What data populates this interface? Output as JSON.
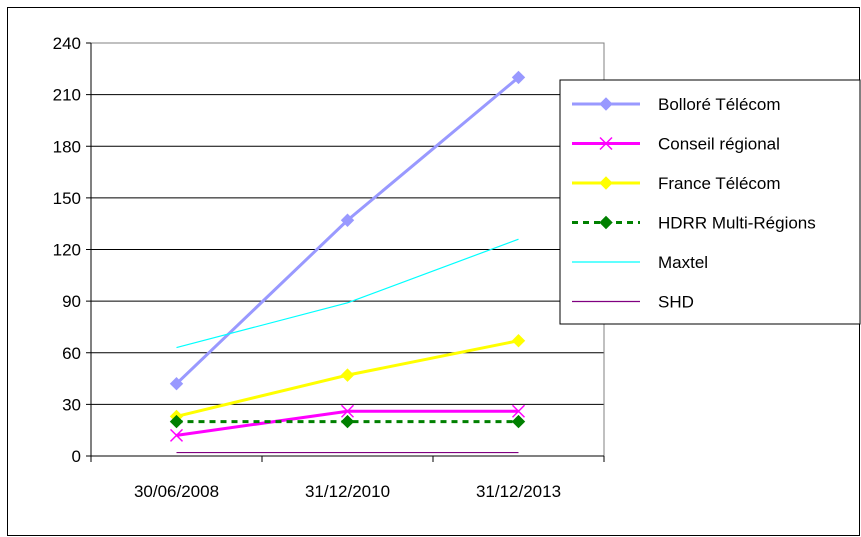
{
  "chart_data": {
    "type": "line",
    "categories": [
      "30/06/2008",
      "31/12/2010",
      "31/12/2013"
    ],
    "ylim": [
      0,
      240
    ],
    "yticks": [
      0,
      30,
      60,
      90,
      120,
      150,
      180,
      210,
      240
    ],
    "grid": "horizontal",
    "legend_position": "right",
    "series": [
      {
        "name": "Bolloré Télécom",
        "values": [
          42,
          137,
          220
        ],
        "color": "#9999ff",
        "marker": "diamond",
        "dash": "solid",
        "width": "thick"
      },
      {
        "name": "Conseil régional",
        "values": [
          12,
          26,
          26
        ],
        "color": "#ff00ff",
        "marker": "x",
        "dash": "solid",
        "width": "thick"
      },
      {
        "name": "France Télécom",
        "values": [
          23,
          47,
          67
        ],
        "color": "#ffff00",
        "marker": "diamond",
        "dash": "solid",
        "width": "thick"
      },
      {
        "name": "HDRR Multi-Régions",
        "values": [
          20,
          20,
          20
        ],
        "color": "#008000",
        "marker": "diamond",
        "dash": "dashed",
        "width": "thick"
      },
      {
        "name": "Maxtel",
        "values": [
          63,
          89,
          126
        ],
        "color": "#00ffff",
        "marker": "none",
        "dash": "solid",
        "width": "thin"
      },
      {
        "name": "SHD",
        "values": [
          2,
          2,
          2
        ],
        "color": "#800080",
        "marker": "none",
        "dash": "solid",
        "width": "thin"
      }
    ]
  }
}
